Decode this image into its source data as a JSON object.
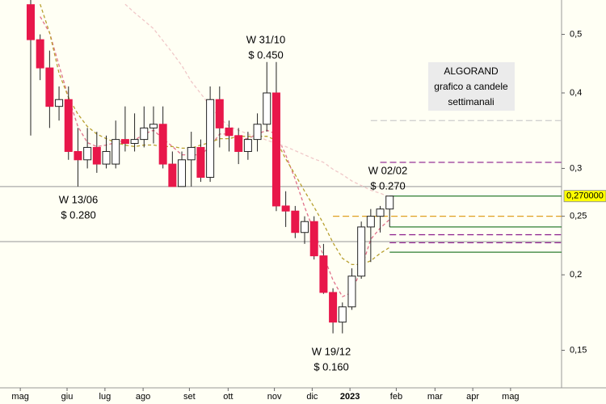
{
  "chart_data": {
    "type": "candlestick",
    "title": [
      "ALGORAND",
      "grafico a candele",
      "settimanali"
    ],
    "log_scale": true,
    "ylim": [
      0.13,
      0.57
    ],
    "yticks": [
      {
        "value": 0.15,
        "label": "0,15"
      },
      {
        "value": 0.2,
        "label": "0,2"
      },
      {
        "value": 0.25,
        "label": "0,25"
      },
      {
        "value": 0.3,
        "label": "0,3"
      },
      {
        "value": 0.4,
        "label": "0,4"
      },
      {
        "value": 0.5,
        "label": "0,5"
      }
    ],
    "xlim": [
      -3.25,
      56.2
    ],
    "xticks": [
      {
        "value": -1.1,
        "label": "mag"
      },
      {
        "value": 3.85,
        "label": "giu"
      },
      {
        "value": 7.86,
        "label": "lug"
      },
      {
        "value": 11.9,
        "label": "ago"
      },
      {
        "value": 16.8,
        "label": "set"
      },
      {
        "value": 20.9,
        "label": "ott"
      },
      {
        "value": 25.8,
        "label": "nov"
      },
      {
        "value": 29.8,
        "label": "dic"
      },
      {
        "value": 33.8,
        "label": "2023"
      },
      {
        "value": 38.7,
        "label": "feb"
      },
      {
        "value": 42.8,
        "label": "mar"
      },
      {
        "value": 46.8,
        "label": "apr"
      },
      {
        "value": 50.8,
        "label": "mag"
      }
    ],
    "up_color": "#ffffff",
    "down_color": "#e8174a",
    "open": [
      0.56,
      0.49,
      0.44,
      0.38,
      0.39,
      0.32,
      0.31,
      0.325,
      0.305,
      0.305,
      0.335,
      0.33,
      0.335,
      0.35,
      0.355,
      0.305,
      0.28,
      0.31,
      0.325,
      0.29,
      0.39,
      0.35,
      0.34,
      0.32,
      0.335,
      0.355,
      0.4,
      0.26,
      0.255,
      0.235,
      0.245,
      0.215,
      0.187,
      0.167,
      0.177,
      0.199,
      0.24,
      0.25,
      0.257
    ],
    "high": [
      0.57,
      0.5,
      0.47,
      0.41,
      0.41,
      0.35,
      0.35,
      0.345,
      0.34,
      0.36,
      0.38,
      0.37,
      0.38,
      0.38,
      0.38,
      0.32,
      0.32,
      0.345,
      0.335,
      0.41,
      0.41,
      0.36,
      0.35,
      0.345,
      0.37,
      0.45,
      0.45,
      0.275,
      0.26,
      0.25,
      0.25,
      0.225,
      0.19,
      0.18,
      0.205,
      0.245,
      0.257,
      0.26,
      0.27
    ],
    "low": [
      0.34,
      0.42,
      0.35,
      0.36,
      0.31,
      0.28,
      0.3,
      0.295,
      0.3,
      0.3,
      0.32,
      0.32,
      0.325,
      0.33,
      0.3,
      0.28,
      0.28,
      0.28,
      0.285,
      0.285,
      0.325,
      0.32,
      0.305,
      0.31,
      0.32,
      0.345,
      0.255,
      0.24,
      0.23,
      0.225,
      0.212,
      0.186,
      0.16,
      0.16,
      0.175,
      0.197,
      0.21,
      0.235,
      0.24
    ],
    "close": [
      0.49,
      0.44,
      0.38,
      0.39,
      0.32,
      0.31,
      0.325,
      0.305,
      0.32,
      0.335,
      0.33,
      0.335,
      0.35,
      0.355,
      0.305,
      0.28,
      0.31,
      0.325,
      0.29,
      0.39,
      0.35,
      0.34,
      0.32,
      0.335,
      0.355,
      0.4,
      0.26,
      0.255,
      0.235,
      0.245,
      0.215,
      0.187,
      0.167,
      0.177,
      0.199,
      0.24,
      0.25,
      0.257,
      0.27
    ],
    "series": [
      {
        "color": "#e0708a",
        "values": [
          null,
          0.535,
          0.503,
          0.444,
          0.393,
          0.352,
          0.331,
          0.326,
          0.328,
          0.331,
          0.334,
          0.334,
          0.342,
          0.347,
          0.336,
          0.326,
          0.316,
          0.316,
          0.316,
          0.326,
          0.342,
          0.342,
          0.336,
          0.336,
          0.342,
          0.347,
          0.342,
          0.316,
          0.288,
          0.259,
          0.236,
          0.215,
          0.196,
          0.184,
          0.187,
          0.205,
          0.229,
          0.239,
          0.247
        ]
      },
      {
        "color": "#b8a030",
        "values": [
          null,
          0.561,
          0.503,
          0.431,
          0.393,
          0.369,
          0.352,
          0.342,
          0.336,
          0.331,
          0.328,
          0.326,
          0.328,
          0.328,
          0.326,
          0.326,
          0.324,
          0.324,
          0.328,
          0.331,
          0.336,
          0.336,
          0.339,
          0.339,
          0.339,
          0.339,
          0.334,
          0.311,
          0.293,
          0.275,
          0.259,
          0.243,
          0.226,
          0.213,
          0.208,
          0.208,
          0.211,
          0.217,
          0.222
        ]
      },
      {
        "color": "#f0c8c8",
        "values": [
          null,
          null,
          null,
          null,
          null,
          null,
          null,
          null,
          null,
          null,
          0.561,
          0.543,
          0.527,
          0.511,
          0.488,
          0.466,
          0.444,
          0.418,
          0.399,
          0.381,
          0.364,
          0.352,
          0.347,
          0.342,
          0.339,
          0.334,
          0.33,
          0.326,
          0.321,
          0.316,
          0.311,
          0.307,
          0.299,
          0.293,
          0.286,
          0.281,
          0.276,
          0.273,
          0.269
        ]
      }
    ],
    "levels": [
      {
        "value": 0.28,
        "color": "#aaaaaa",
        "dash": false
      },
      {
        "value": 0.227,
        "color": "#aaaaaa",
        "dash": false
      },
      {
        "value": 0.36,
        "color": "#cccccc",
        "dash": true,
        "from": 36
      },
      {
        "value": 0.307,
        "color": "#8b1a8b",
        "dash": true,
        "from": 37
      },
      {
        "value": 0.27,
        "color": "#2e7d32",
        "dash": false,
        "from": 38
      },
      {
        "value": 0.25,
        "color": "#e0a020",
        "dash": true,
        "from": 32
      },
      {
        "value": 0.24,
        "color": "#2e7d32",
        "dash": false,
        "from": 38
      },
      {
        "value": 0.233,
        "color": "#8b1a8b",
        "dash": true,
        "from": 38
      },
      {
        "value": 0.226,
        "color": "#8b1a8b",
        "dash": true,
        "from": 38
      },
      {
        "value": 0.218,
        "color": "#2e7d32",
        "dash": false,
        "from": 38
      }
    ],
    "price_label": {
      "value": 0.27,
      "label": "0,270000"
    },
    "annotations": [
      {
        "lines": [
          "W 13/06",
          "$ 0.280"
        ]
      },
      {
        "lines": [
          "W 31/10",
          "$ 0.450"
        ]
      },
      {
        "lines": [
          "W 19/12",
          "$ 0.160"
        ]
      },
      {
        "lines": [
          "W 02/02",
          "$ 0.270"
        ]
      }
    ]
  }
}
